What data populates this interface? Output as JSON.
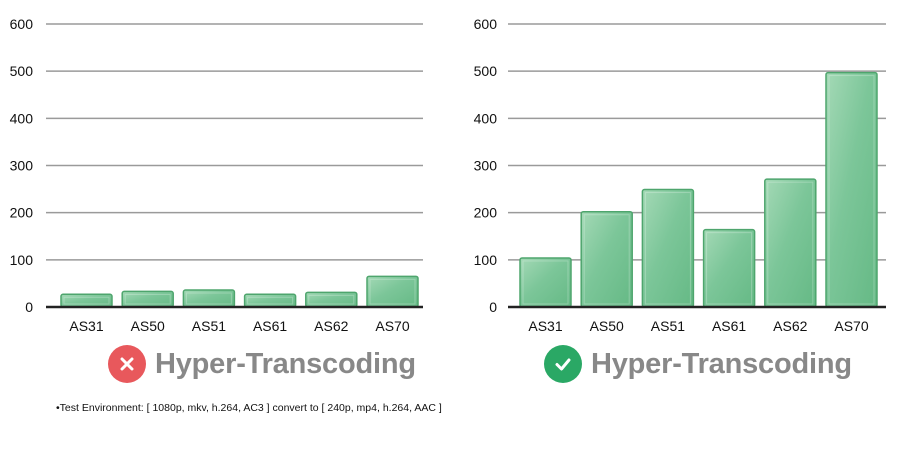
{
  "colors": {
    "bar_fill": "#72c08f",
    "bar_stroke": "#4ea56d",
    "grid": "#9a9a9a",
    "axis": "#222222",
    "text_muted": "#888888",
    "fail": "#e8585c",
    "pass": "#2aa865"
  },
  "chart_data": [
    {
      "type": "bar",
      "categories": [
        "AS31",
        "AS50",
        "AS51",
        "AS61",
        "AS62",
        "AS70"
      ],
      "values": [
        27,
        33,
        36,
        27,
        31,
        65
      ],
      "ylim": [
        0,
        600
      ],
      "yticks": [
        0,
        100,
        200,
        300,
        400,
        500,
        600
      ],
      "grid": true,
      "title": "",
      "xlabel": "",
      "ylabel": ""
    },
    {
      "type": "bar",
      "categories": [
        "AS31",
        "AS50",
        "AS51",
        "AS61",
        "AS62",
        "AS70"
      ],
      "values": [
        104,
        202,
        249,
        164,
        271,
        497
      ],
      "ylim": [
        0,
        600
      ],
      "yticks": [
        0,
        100,
        200,
        300,
        400,
        500,
        600
      ],
      "grid": true,
      "title": "",
      "xlabel": "",
      "ylabel": ""
    }
  ],
  "captions": {
    "left": {
      "icon": "x-icon",
      "text": "Hyper-Transcoding"
    },
    "right": {
      "icon": "check-icon",
      "text": "Hyper-Transcoding"
    }
  },
  "footnote": "•Test Environment: [ 1080p, mkv, h.264, AC3 ] convert to [ 240p, mp4, h.264, AAC ]"
}
